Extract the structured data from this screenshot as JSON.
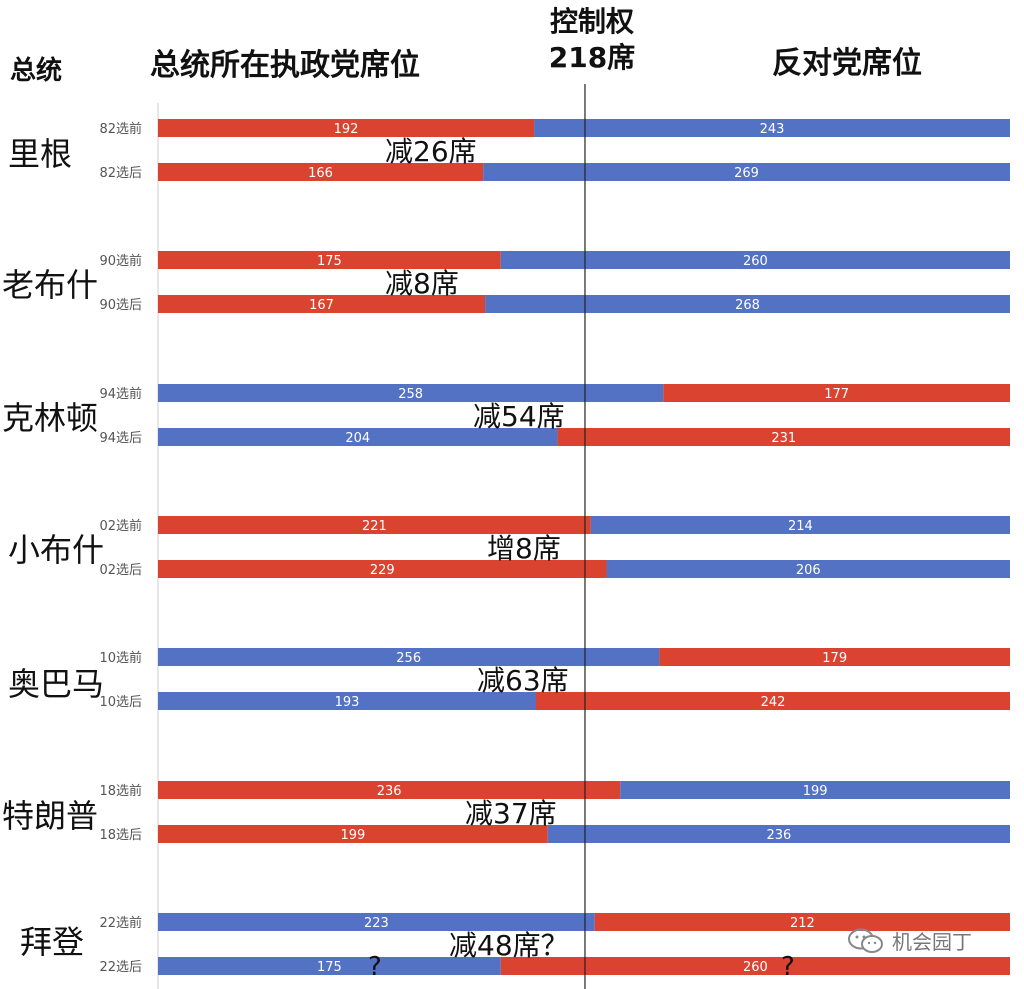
{
  "header": {
    "president_label": "总统",
    "ruling_label": "总统所在执政党席位",
    "control_label": "控制权",
    "control_seats": "218席",
    "opposition_label": "反对党席位"
  },
  "colors": {
    "red": "#d94330",
    "blue": "#5472c4"
  },
  "chart_data": {
    "type": "bar",
    "stacked": true,
    "orientation": "horizontal",
    "total": 435,
    "threshold": 218,
    "groups": [
      {
        "president": "里根",
        "change": "减26席",
        "rows": [
          {
            "label": "82选前",
            "ruling": 192,
            "opposition": 243,
            "ruling_party": "red"
          },
          {
            "label": "82选后",
            "ruling": 166,
            "opposition": 269,
            "ruling_party": "red"
          }
        ]
      },
      {
        "president": "老布什",
        "change": "减8席",
        "rows": [
          {
            "label": "90选前",
            "ruling": 175,
            "opposition": 260,
            "ruling_party": "red"
          },
          {
            "label": "90选后",
            "ruling": 167,
            "opposition": 268,
            "ruling_party": "red"
          }
        ]
      },
      {
        "president": "克林顿",
        "change": "减54席",
        "rows": [
          {
            "label": "94选前",
            "ruling": 258,
            "opposition": 177,
            "ruling_party": "blue"
          },
          {
            "label": "94选后",
            "ruling": 204,
            "opposition": 231,
            "ruling_party": "blue"
          }
        ]
      },
      {
        "president": "小布什",
        "change": "增8席",
        "rows": [
          {
            "label": "02选前",
            "ruling": 221,
            "opposition": 214,
            "ruling_party": "red"
          },
          {
            "label": "02选后",
            "ruling": 229,
            "opposition": 206,
            "ruling_party": "red"
          }
        ]
      },
      {
        "president": "奥巴马",
        "change": "减63席",
        "rows": [
          {
            "label": "10选前",
            "ruling": 256,
            "opposition": 179,
            "ruling_party": "blue"
          },
          {
            "label": "10选后",
            "ruling": 193,
            "opposition": 242,
            "ruling_party": "blue"
          }
        ]
      },
      {
        "president": "特朗普",
        "change": "减37席",
        "rows": [
          {
            "label": "18选前",
            "ruling": 236,
            "opposition": 199,
            "ruling_party": "red"
          },
          {
            "label": "18选后",
            "ruling": 199,
            "opposition": 236,
            "ruling_party": "red"
          }
        ]
      },
      {
        "president": "拜登",
        "change": "减48席？",
        "rows": [
          {
            "label": "22选前",
            "ruling": 223,
            "opposition": 212,
            "ruling_party": "blue"
          },
          {
            "label": "22选后",
            "ruling": 175,
            "opposition": 260,
            "ruling_party": "blue"
          }
        ]
      }
    ],
    "annotations": [
      "?",
      "?"
    ]
  },
  "watermark": "机会园丁"
}
